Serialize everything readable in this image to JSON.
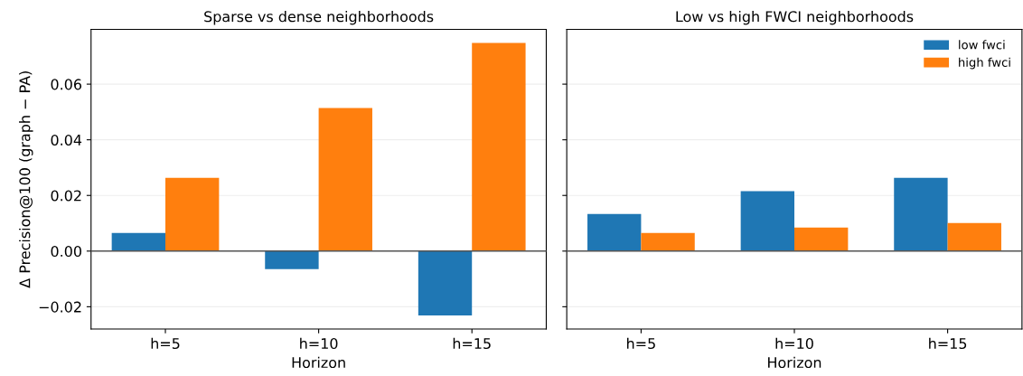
{
  "chart_data": [
    {
      "type": "bar",
      "title": "Sparse vs dense neighborhoods",
      "xlabel": "Horizon",
      "ylabel": "Δ Precision@100 (graph − PA)",
      "categories": [
        "h=5",
        "h=10",
        "h=15"
      ],
      "series": [
        {
          "color": "#1f77b4",
          "values": [
            0.0065,
            -0.0065,
            -0.0231
          ]
        },
        {
          "color": "#ff7f0e",
          "values": [
            0.0263,
            0.0514,
            0.0748
          ]
        }
      ],
      "ylim": [
        -0.028,
        0.0797
      ],
      "yticks": [
        {
          "value": -0.02,
          "label": "−0.02"
        },
        {
          "value": 0.0,
          "label": "0.00"
        },
        {
          "value": 0.02,
          "label": "0.02"
        },
        {
          "value": 0.04,
          "label": "0.04"
        },
        {
          "value": 0.06,
          "label": "0.06"
        }
      ],
      "grid": "y",
      "ref_lines": [
        {
          "axis": "y",
          "value": 0,
          "color": "#555555"
        }
      ]
    },
    {
      "type": "bar",
      "title": "Low vs high FWCI neighborhoods",
      "xlabel": "Horizon",
      "categories": [
        "h=5",
        "h=10",
        "h=15"
      ],
      "series": [
        {
          "name": "low fwci",
          "color": "#1f77b4",
          "values": [
            0.0133,
            0.0215,
            0.0263
          ]
        },
        {
          "name": "high fwci",
          "color": "#ff7f0e",
          "values": [
            0.0065,
            0.0085,
            0.0101
          ]
        }
      ],
      "ylim": [
        -0.028,
        0.0797
      ],
      "yticks": [
        {
          "value": -0.02,
          "label": null
        },
        {
          "value": 0.0,
          "label": null
        },
        {
          "value": 0.02,
          "label": null
        },
        {
          "value": 0.04,
          "label": null
        },
        {
          "value": 0.06,
          "label": null
        }
      ],
      "tick_labels": "x",
      "grid": "y",
      "legend": "top right",
      "ref_lines": [
        {
          "axis": "y",
          "value": 0,
          "color": "#555555"
        }
      ]
    }
  ]
}
